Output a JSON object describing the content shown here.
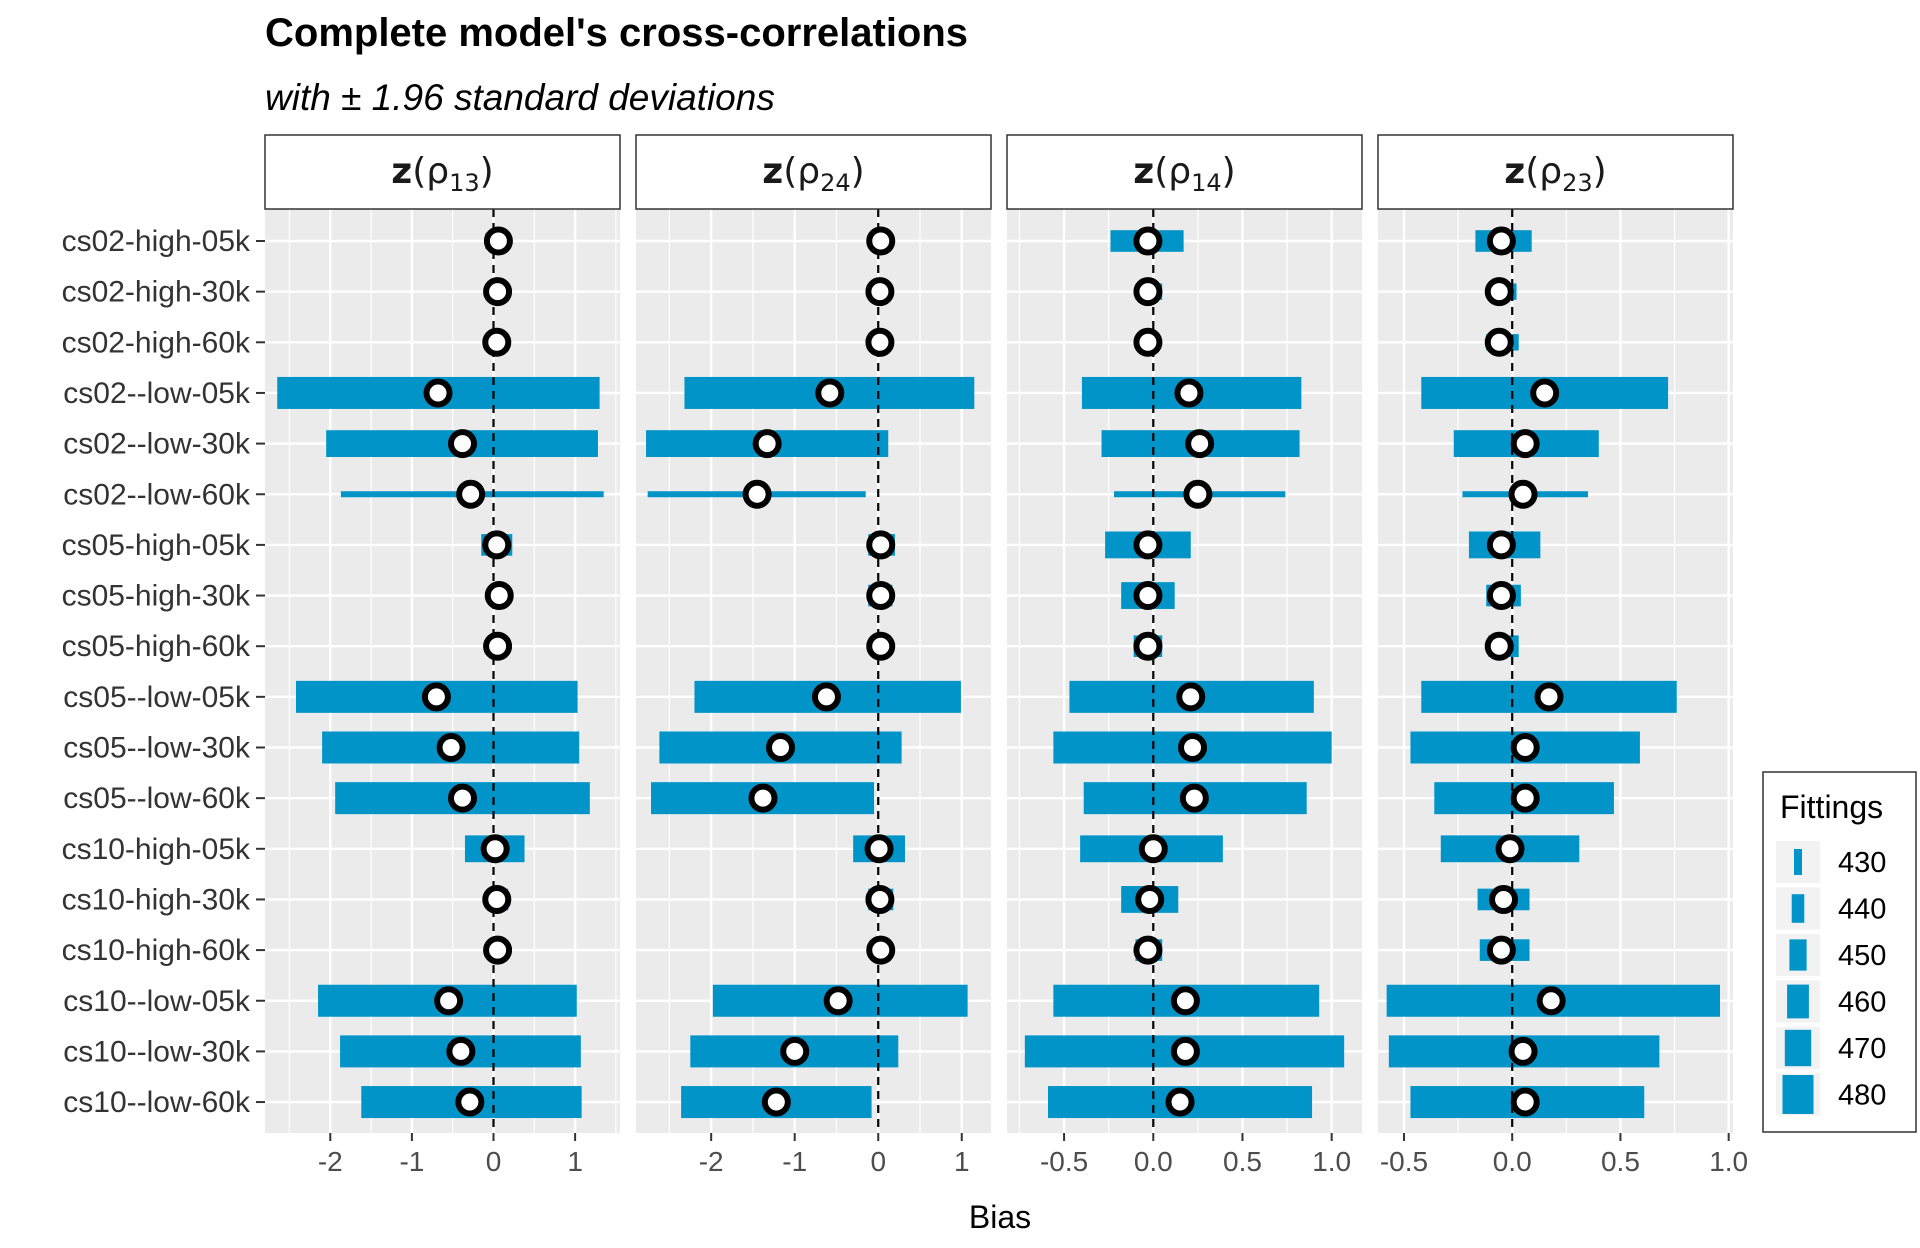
{
  "chart_data": {
    "type": "bar",
    "title": "Complete model's cross-correlations",
    "subtitle": "with ± 1.96 standard deviations",
    "xlabel": "Bias",
    "ylabel": "",
    "reference_line": 0,
    "categories": [
      "cs02-high-05k",
      "cs02-high-30k",
      "cs02-high-60k",
      "cs02--low-05k",
      "cs02--low-30k",
      "cs02--low-60k",
      "cs05-high-05k",
      "cs05-high-30k",
      "cs05-high-60k",
      "cs05--low-05k",
      "cs05--low-30k",
      "cs05--low-60k",
      "cs10-high-05k",
      "cs10-high-30k",
      "cs10-high-60k",
      "cs10--low-05k",
      "cs10--low-30k",
      "cs10--low-60k"
    ],
    "legend": {
      "title": "Fittings",
      "position": "right",
      "values": [
        430,
        440,
        450,
        460,
        470,
        480
      ]
    },
    "colors": {
      "bar": "#0094c8",
      "panel": "#ebebeb",
      "grid": "#ffffff",
      "point_stroke": "#000000",
      "point_fill": "#ffffff"
    },
    "facets": [
      {
        "label_main": "z",
        "label_sub": "13",
        "xlim": [
          -2.8,
          1.55
        ],
        "ticks": [
          -2,
          -1,
          0,
          1
        ],
        "tick_labels": [
          "-2",
          "-1",
          "0",
          "1"
        ],
        "bias": [
          0.06,
          0.05,
          0.04,
          -0.68,
          -0.38,
          -0.28,
          0.04,
          0.07,
          0.05,
          -0.7,
          -0.52,
          -0.38,
          0.02,
          0.04,
          0.05,
          -0.55,
          -0.4,
          -0.29
        ],
        "lower": [
          -0.1,
          0.02,
          0.02,
          -2.65,
          -2.05,
          -1.87,
          -0.15,
          -0.05,
          -0.03,
          -2.42,
          -2.1,
          -1.94,
          -0.35,
          -0.08,
          -0.02,
          -2.15,
          -1.88,
          -1.62
        ],
        "upper": [
          0.2,
          0.09,
          0.06,
          1.3,
          1.28,
          1.35,
          0.23,
          0.18,
          0.14,
          1.03,
          1.05,
          1.18,
          0.38,
          0.18,
          0.12,
          1.02,
          1.07,
          1.08
        ],
        "fittings": [
          450,
          440,
          440,
          480,
          470,
          430,
          460,
          460,
          450,
          480,
          480,
          480,
          470,
          460,
          450,
          480,
          480,
          480
        ]
      },
      {
        "label_main": "z",
        "label_sub": "24",
        "xlim": [
          -2.9,
          1.35
        ],
        "ticks": [
          -2,
          -1,
          0,
          1
        ],
        "tick_labels": [
          "-2",
          "-1",
          "0",
          "1"
        ],
        "bias": [
          0.03,
          0.02,
          0.02,
          -0.58,
          -1.33,
          -1.45,
          0.03,
          0.03,
          0.03,
          -0.62,
          -1.17,
          -1.38,
          0.01,
          0.02,
          0.03,
          -0.48,
          -1.0,
          -1.22
        ],
        "lower": [
          -0.05,
          -0.03,
          -0.02,
          -2.32,
          -2.78,
          -2.76,
          -0.12,
          -0.12,
          -0.06,
          -2.2,
          -2.62,
          -2.72,
          -0.3,
          -0.12,
          -0.06,
          -1.98,
          -2.25,
          -2.36
        ],
        "upper": [
          0.07,
          0.06,
          0.05,
          1.15,
          0.12,
          -0.15,
          0.2,
          0.17,
          0.09,
          0.99,
          0.28,
          -0.05,
          0.32,
          0.18,
          0.15,
          1.07,
          0.24,
          -0.08
        ],
        "fittings": [
          440,
          430,
          430,
          480,
          470,
          430,
          460,
          460,
          450,
          480,
          480,
          480,
          470,
          460,
          460,
          480,
          480,
          480
        ]
      },
      {
        "label_main": "z",
        "label_sub": "14",
        "xlim": [
          -0.82,
          1.17
        ],
        "ticks": [
          -0.5,
          0,
          0.5,
          1
        ],
        "tick_labels": [
          "-0.5",
          "0.0",
          "0.5",
          "1.0"
        ],
        "bias": [
          -0.03,
          -0.03,
          -0.03,
          0.2,
          0.26,
          0.25,
          -0.03,
          -0.03,
          -0.03,
          0.21,
          0.22,
          0.23,
          0.0,
          -0.02,
          -0.03,
          0.18,
          0.18,
          0.15
        ],
        "lower": [
          -0.24,
          -0.1,
          -0.09,
          -0.4,
          -0.29,
          -0.22,
          -0.27,
          -0.18,
          -0.11,
          -0.47,
          -0.56,
          -0.39,
          -0.41,
          -0.18,
          -0.1,
          -0.56,
          -0.72,
          -0.59
        ],
        "upper": [
          0.17,
          0.05,
          0.03,
          0.83,
          0.82,
          0.74,
          0.21,
          0.12,
          0.05,
          0.9,
          1.0,
          0.86,
          0.39,
          0.14,
          0.05,
          0.93,
          1.07,
          0.89
        ],
        "fittings": [
          460,
          450,
          440,
          480,
          470,
          430,
          470,
          470,
          460,
          480,
          480,
          480,
          470,
          470,
          460,
          480,
          480,
          480
        ]
      },
      {
        "label_main": "z",
        "label_sub": "23",
        "xlim": [
          -0.62,
          1.02
        ],
        "ticks": [
          -0.5,
          0,
          0.5,
          1
        ],
        "tick_labels": [
          "-0.5",
          "0.0",
          "0.5",
          "1.0"
        ],
        "bias": [
          -0.05,
          -0.06,
          -0.06,
          0.15,
          0.06,
          0.05,
          -0.05,
          -0.05,
          -0.06,
          0.17,
          0.06,
          0.06,
          -0.01,
          -0.04,
          -0.05,
          0.18,
          0.05,
          0.06
        ],
        "lower": [
          -0.17,
          -0.1,
          -0.12,
          -0.42,
          -0.27,
          -0.23,
          -0.2,
          -0.12,
          -0.11,
          -0.42,
          -0.47,
          -0.36,
          -0.33,
          -0.16,
          -0.15,
          -0.58,
          -0.57,
          -0.47
        ],
        "upper": [
          0.09,
          0.02,
          0.03,
          0.72,
          0.4,
          0.35,
          0.13,
          0.04,
          0.03,
          0.76,
          0.59,
          0.47,
          0.31,
          0.08,
          0.08,
          0.96,
          0.68,
          0.61
        ],
        "fittings": [
          460,
          450,
          450,
          480,
          470,
          430,
          470,
          460,
          460,
          480,
          480,
          480,
          470,
          460,
          460,
          480,
          480,
          480
        ]
      }
    ]
  }
}
